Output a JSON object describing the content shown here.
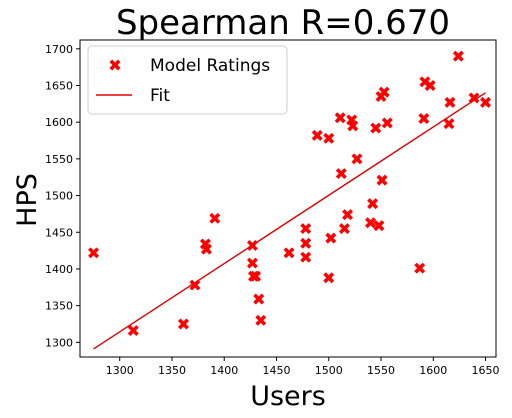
{
  "chart_data": {
    "type": "scatter",
    "title": "Spearman R=0.670",
    "xlabel": "Users",
    "ylabel": "HPS",
    "xlim": [
      1262,
      1660
    ],
    "ylim": [
      1280,
      1712
    ],
    "xticks": [
      1300,
      1350,
      1400,
      1450,
      1500,
      1550,
      1600,
      1650
    ],
    "yticks": [
      1300,
      1350,
      1400,
      1450,
      1500,
      1550,
      1600,
      1650,
      1700
    ],
    "grid": false,
    "legend_position": "top-left",
    "series": [
      {
        "name": "Model Ratings",
        "marker": "x",
        "color": "#ff0000",
        "points": [
          [
            1275,
            1422
          ],
          [
            1313,
            1316
          ],
          [
            1361,
            1325
          ],
          [
            1372,
            1378
          ],
          [
            1382,
            1434
          ],
          [
            1383,
            1427
          ],
          [
            1391,
            1469
          ],
          [
            1427,
            1408
          ],
          [
            1427,
            1432
          ],
          [
            1428,
            1390
          ],
          [
            1430,
            1390
          ],
          [
            1433,
            1359
          ],
          [
            1435,
            1330
          ],
          [
            1462,
            1422
          ],
          [
            1478,
            1455
          ],
          [
            1478,
            1435
          ],
          [
            1478,
            1416
          ],
          [
            1489,
            1582
          ],
          [
            1500,
            1578
          ],
          [
            1500,
            1388
          ],
          [
            1502,
            1442
          ],
          [
            1511,
            1606
          ],
          [
            1512,
            1530
          ],
          [
            1515,
            1455
          ],
          [
            1518,
            1474
          ],
          [
            1522,
            1603
          ],
          [
            1523,
            1595
          ],
          [
            1527,
            1550
          ],
          [
            1540,
            1463
          ],
          [
            1542,
            1489
          ],
          [
            1545,
            1592
          ],
          [
            1548,
            1459
          ],
          [
            1550,
            1635
          ],
          [
            1551,
            1521
          ],
          [
            1553,
            1641
          ],
          [
            1556,
            1599
          ],
          [
            1587,
            1401
          ],
          [
            1591,
            1605
          ],
          [
            1592,
            1655
          ],
          [
            1597,
            1650
          ],
          [
            1615,
            1598
          ],
          [
            1616,
            1627
          ],
          [
            1624,
            1690
          ],
          [
            1639,
            1633
          ],
          [
            1650,
            1627
          ]
        ]
      },
      {
        "name": "Fit",
        "type": "line",
        "color": "#dd0000",
        "x": [
          1275,
          1650
        ],
        "y": [
          1291,
          1640
        ]
      }
    ]
  }
}
